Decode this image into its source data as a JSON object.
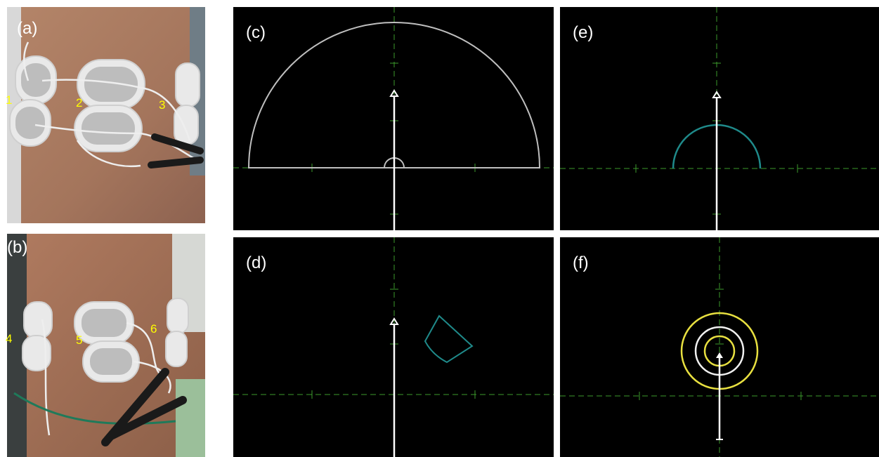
{
  "panels": {
    "a": "(a)",
    "b": "(b)",
    "c": "(c)",
    "d": "(d)",
    "e": "(e)",
    "f": "(f)"
  },
  "electrodes": [
    "1",
    "2",
    "3",
    "4",
    "5",
    "6"
  ]
}
